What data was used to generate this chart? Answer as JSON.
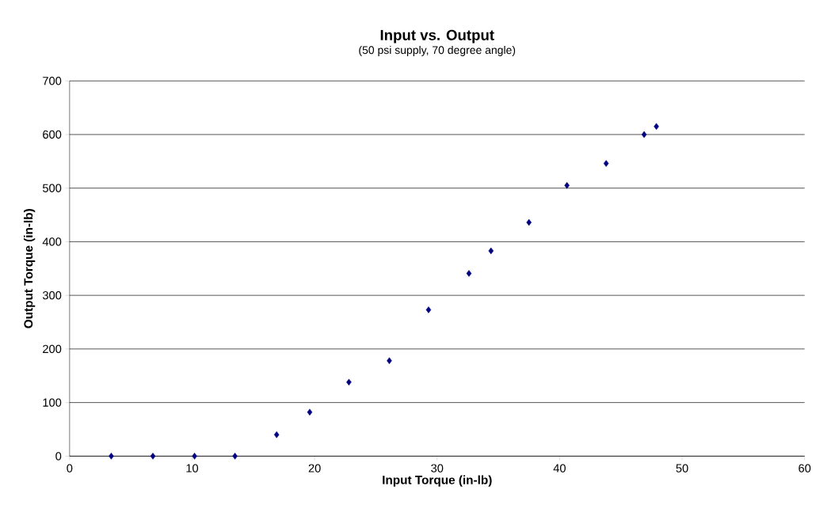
{
  "chart_data": {
    "type": "scatter",
    "title": "Input vs. Output",
    "subtitle": "(50 psi supply, 70 degree angle)",
    "xlabel": "Input Torque (in-lb)",
    "ylabel": "Output Torque (in-lb)",
    "x": [
      3.4,
      6.8,
      10.2,
      13.5,
      16.9,
      19.6,
      22.8,
      26.1,
      29.3,
      32.6,
      34.4,
      37.5,
      40.6,
      43.8,
      46.9,
      47.9
    ],
    "values": [
      0,
      0,
      0,
      0,
      40,
      82,
      138,
      178,
      273,
      341,
      383,
      436,
      505,
      546,
      600,
      615
    ],
    "color": "#000080",
    "marker": "diamond",
    "grid": "y",
    "xlim": [
      0,
      60
    ],
    "xticks": [
      0,
      10,
      20,
      30,
      40,
      50,
      60
    ],
    "ylim": [
      0,
      700
    ],
    "yticks": [
      0,
      100,
      200,
      300,
      400,
      500,
      600,
      700
    ]
  }
}
